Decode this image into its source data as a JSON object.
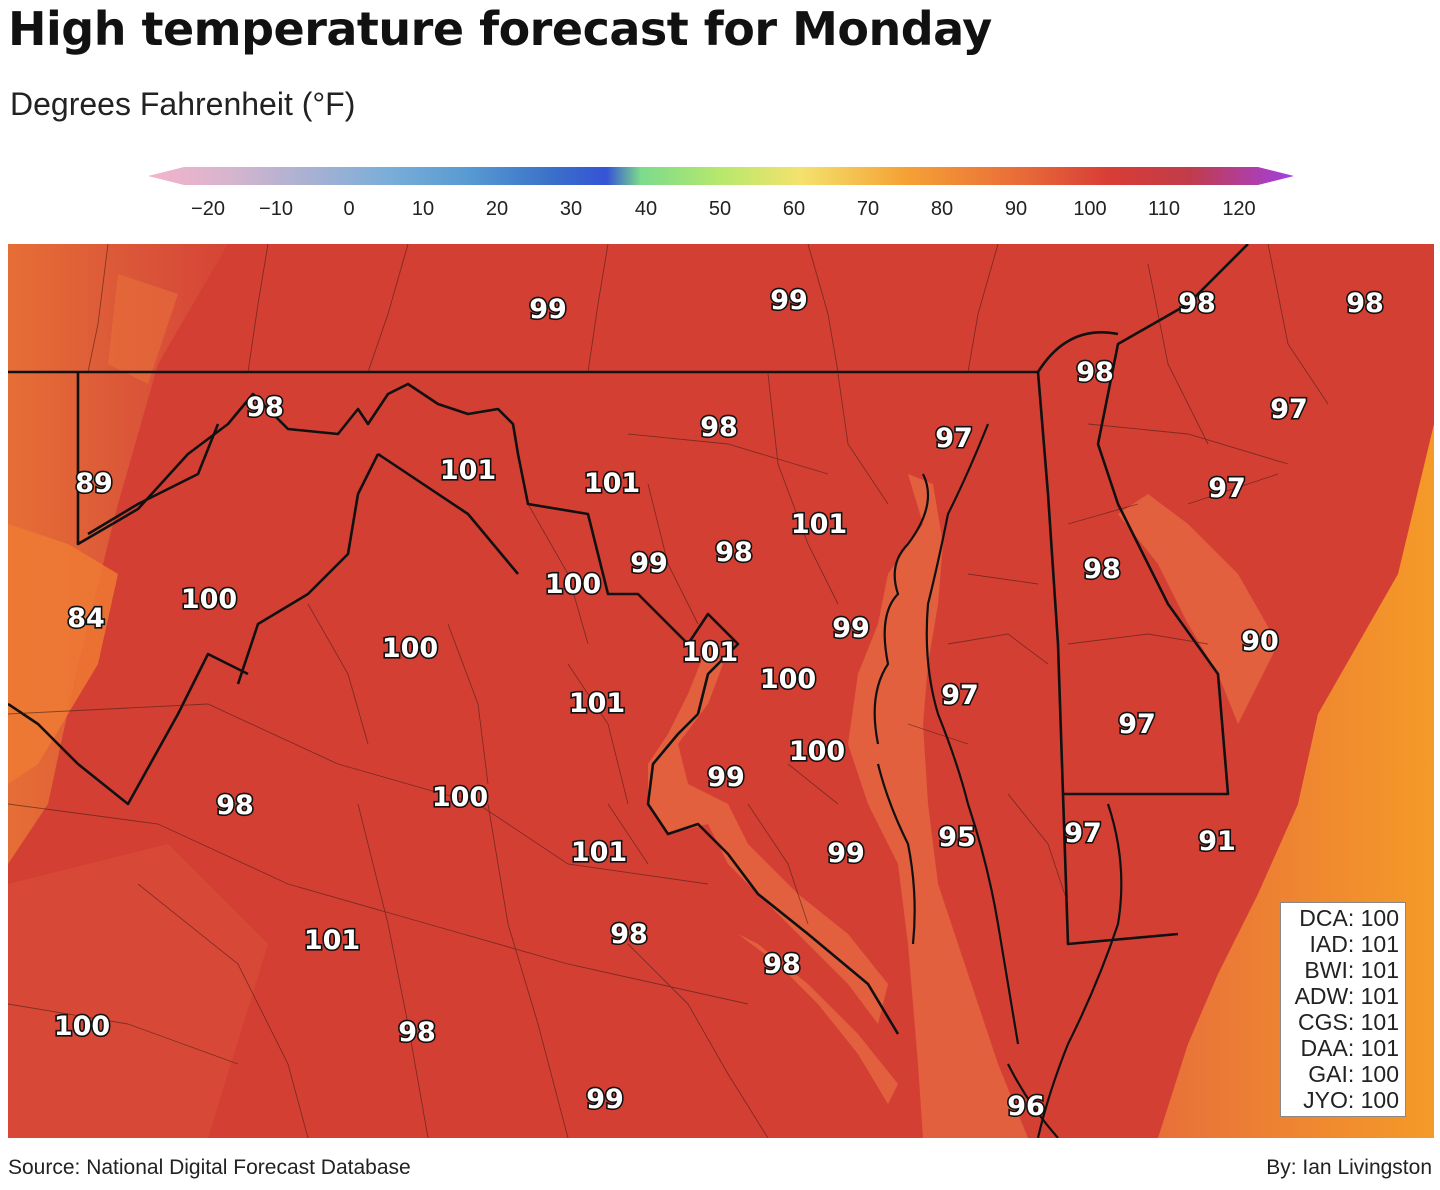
{
  "title": "High temperature forecast for Monday",
  "subtitle": "Degrees Fahrenheit (°F)",
  "colorbar": {
    "ticks": [
      "−20",
      "−10",
      "0",
      "10",
      "20",
      "30",
      "40",
      "50",
      "60",
      "70",
      "80",
      "90",
      "100",
      "110",
      "120"
    ],
    "colors": [
      "#f4b4cc",
      "#d7b5cd",
      "#a9b1d3",
      "#7aaed8",
      "#579ad2",
      "#3b72c9",
      "#3553d6",
      "#7cdb8c",
      "#b7e86c",
      "#f4e26d",
      "#f5a235",
      "#ea7238",
      "#d83c36",
      "#c03c4b",
      "#a33fe3"
    ]
  },
  "map_colors": {
    "land_main": "#d43f34",
    "land_west": "#dc5a3a",
    "ridge_orange": "#ee7a34",
    "bay_water": "#e2603e",
    "ocean_gradient_start": "#e8703a",
    "ocean_gradient_end": "#f59a28"
  },
  "temperatures": [
    {
      "label": "99"
    },
    {
      "label": "99"
    },
    {
      "label": "98"
    },
    {
      "label": "98"
    },
    {
      "label": "98"
    },
    {
      "label": "98"
    },
    {
      "label": "97"
    },
    {
      "label": "89"
    },
    {
      "label": "101"
    },
    {
      "label": "101"
    },
    {
      "label": "98"
    },
    {
      "label": "97"
    },
    {
      "label": "97"
    },
    {
      "label": "101"
    },
    {
      "label": "100"
    },
    {
      "label": "99"
    },
    {
      "label": "98"
    },
    {
      "label": "100"
    },
    {
      "label": "98"
    },
    {
      "label": "84"
    },
    {
      "label": "99"
    },
    {
      "label": "90"
    },
    {
      "label": "100"
    },
    {
      "label": "101"
    },
    {
      "label": "100"
    },
    {
      "label": "101"
    },
    {
      "label": "97"
    },
    {
      "label": "97"
    },
    {
      "label": "100"
    },
    {
      "label": "99"
    },
    {
      "label": "98"
    },
    {
      "label": "100"
    },
    {
      "label": "97"
    },
    {
      "label": "95"
    },
    {
      "label": "91"
    },
    {
      "label": "101"
    },
    {
      "label": "99"
    },
    {
      "label": "101"
    },
    {
      "label": "98"
    },
    {
      "label": "98"
    },
    {
      "label": "100"
    },
    {
      "label": "98"
    },
    {
      "label": "99"
    },
    {
      "label": "96"
    }
  ],
  "stations": [
    "DCA: 100",
    "IAD: 101",
    "BWI: 101",
    "ADW: 101",
    "CGS: 101",
    "DAA: 101",
    "GAI: 100",
    "JYO: 100"
  ],
  "source": "Source: National Digital Forecast Database",
  "byline": "By: Ian Livingston"
}
